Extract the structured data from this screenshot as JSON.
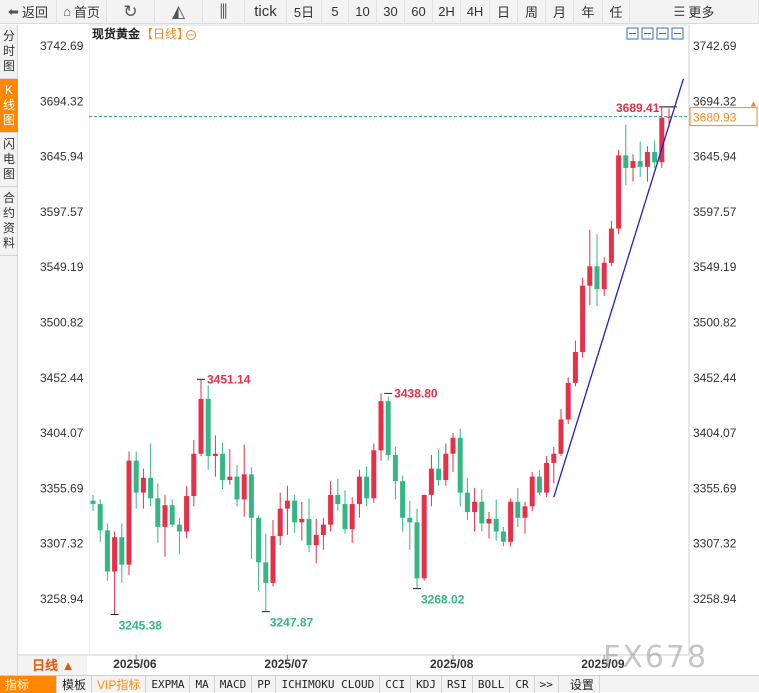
{
  "toolbar": {
    "items": [
      {
        "label": "返回",
        "icon": "back-arrow-icon"
      },
      {
        "label": "首页",
        "icon": "home-icon"
      },
      {
        "label": "",
        "icon": "refresh-icon"
      },
      {
        "label": "",
        "icon": "mountain-chart-icon"
      },
      {
        "label": "",
        "icon": "candlestick-icon"
      },
      {
        "label": "tick"
      },
      {
        "label": "5日"
      },
      {
        "label": "5"
      },
      {
        "label": "10"
      },
      {
        "label": "30"
      },
      {
        "label": "60"
      },
      {
        "label": "2H"
      },
      {
        "label": "4H"
      },
      {
        "label": "日"
      },
      {
        "label": "周"
      },
      {
        "label": "月"
      },
      {
        "label": "年"
      },
      {
        "label": "任"
      },
      {
        "label": "更多",
        "icon": "menu-icon"
      }
    ]
  },
  "sidebar": {
    "tabs": [
      {
        "label": "分时图",
        "active": false
      },
      {
        "label": "K线图",
        "active": true
      },
      {
        "label": "闪电图",
        "active": false
      },
      {
        "label": "合约资料",
        "active": false
      }
    ]
  },
  "header": {
    "title": "现货黄金",
    "period": "【日线】",
    "collapse_icon": "circle-minus-icon"
  },
  "chart_tools": [
    "zoom-in-icon",
    "zoom-out-icon",
    "draw-line-icon",
    "jump-end-icon"
  ],
  "period_button": "日线",
  "bottombar": {
    "items": [
      "指标",
      "模板",
      "VIP指标",
      "EXPMA",
      "MA",
      "MACD",
      "PP",
      "ICHIMOKU CLOUD",
      "CCI",
      "KDJ",
      "RSI",
      "BOLL",
      "CR",
      ">>",
      "设置"
    ]
  },
  "watermark": "FX678",
  "chart_data": {
    "type": "candlestick",
    "title": "现货黄金",
    "period": "日线",
    "y_ticks": [
      3258.94,
      3307.32,
      3355.69,
      3404.07,
      3452.44,
      3500.82,
      3549.19,
      3597.57,
      3645.94,
      3694.32,
      3742.69
    ],
    "x_labels": [
      {
        "label": "2025/06",
        "index": 6
      },
      {
        "label": "2025/07",
        "index": 27
      },
      {
        "label": "2025/08",
        "index": 50
      },
      {
        "label": "2025/09",
        "index": 71
      }
    ],
    "current_price": 3680.93,
    "annotations": [
      {
        "label": "3245.38",
        "value": 3245.38,
        "index": 3,
        "type": "low"
      },
      {
        "label": "3451.14",
        "value": 3451.14,
        "index": 15,
        "type": "high"
      },
      {
        "label": "3247.87",
        "value": 3247.87,
        "index": 24,
        "type": "low"
      },
      {
        "label": "3438.80",
        "value": 3438.8,
        "index": 41,
        "type": "high"
      },
      {
        "label": "3268.02",
        "value": 3268.02,
        "index": 45,
        "type": "low"
      },
      {
        "label": "3689.41",
        "value": 3689.41,
        "index": 80,
        "type": "high"
      }
    ],
    "trendline": [
      {
        "index": 64,
        "value": 3348
      },
      {
        "index": 82,
        "value": 3714
      }
    ],
    "candles": [
      {
        "o": 3345,
        "h": 3350,
        "l": 3336,
        "c": 3342
      },
      {
        "o": 3342,
        "h": 3346,
        "l": 3309,
        "c": 3319
      },
      {
        "o": 3319,
        "h": 3325,
        "l": 3275,
        "c": 3283
      },
      {
        "o": 3283,
        "h": 3318,
        "l": 3245.38,
        "c": 3313
      },
      {
        "o": 3313,
        "h": 3325,
        "l": 3273,
        "c": 3289
      },
      {
        "o": 3289,
        "h": 3388,
        "l": 3280,
        "c": 3380
      },
      {
        "o": 3380,
        "h": 3388,
        "l": 3338,
        "c": 3352
      },
      {
        "o": 3352,
        "h": 3373,
        "l": 3338,
        "c": 3365
      },
      {
        "o": 3365,
        "h": 3395,
        "l": 3340,
        "c": 3347
      },
      {
        "o": 3347,
        "h": 3360,
        "l": 3308,
        "c": 3322
      },
      {
        "o": 3322,
        "h": 3350,
        "l": 3296,
        "c": 3341
      },
      {
        "o": 3341,
        "h": 3346,
        "l": 3322,
        "c": 3324
      },
      {
        "o": 3324,
        "h": 3330,
        "l": 3298,
        "c": 3318
      },
      {
        "o": 3318,
        "h": 3358,
        "l": 3312,
        "c": 3349
      },
      {
        "o": 3349,
        "h": 3398,
        "l": 3340,
        "c": 3386
      },
      {
        "o": 3386,
        "h": 3451.14,
        "l": 3384,
        "c": 3434
      },
      {
        "o": 3434,
        "h": 3446,
        "l": 3372,
        "c": 3384
      },
      {
        "o": 3384,
        "h": 3402,
        "l": 3366,
        "c": 3386
      },
      {
        "o": 3386,
        "h": 3396,
        "l": 3355,
        "c": 3363
      },
      {
        "o": 3363,
        "h": 3390,
        "l": 3359,
        "c": 3366
      },
      {
        "o": 3366,
        "h": 3376,
        "l": 3340,
        "c": 3346
      },
      {
        "o": 3346,
        "h": 3394,
        "l": 3331,
        "c": 3368
      },
      {
        "o": 3368,
        "h": 3374,
        "l": 3294,
        "c": 3330
      },
      {
        "o": 3330,
        "h": 3332,
        "l": 3266,
        "c": 3291
      },
      {
        "o": 3291,
        "h": 3316,
        "l": 3247.87,
        "c": 3273
      },
      {
        "o": 3273,
        "h": 3328,
        "l": 3270,
        "c": 3314
      },
      {
        "o": 3314,
        "h": 3352,
        "l": 3306,
        "c": 3338
      },
      {
        "o": 3338,
        "h": 3358,
        "l": 3315,
        "c": 3345
      },
      {
        "o": 3345,
        "h": 3350,
        "l": 3317,
        "c": 3326
      },
      {
        "o": 3326,
        "h": 3344,
        "l": 3310,
        "c": 3329
      },
      {
        "o": 3329,
        "h": 3347,
        "l": 3300,
        "c": 3306
      },
      {
        "o": 3306,
        "h": 3329,
        "l": 3290,
        "c": 3315
      },
      {
        "o": 3315,
        "h": 3330,
        "l": 3302,
        "c": 3324
      },
      {
        "o": 3324,
        "h": 3362,
        "l": 3318,
        "c": 3350
      },
      {
        "o": 3350,
        "h": 3364,
        "l": 3336,
        "c": 3342
      },
      {
        "o": 3342,
        "h": 3354,
        "l": 3316,
        "c": 3320
      },
      {
        "o": 3320,
        "h": 3348,
        "l": 3308,
        "c": 3342
      },
      {
        "o": 3342,
        "h": 3372,
        "l": 3330,
        "c": 3366
      },
      {
        "o": 3366,
        "h": 3375,
        "l": 3340,
        "c": 3347
      },
      {
        "o": 3347,
        "h": 3395,
        "l": 3343,
        "c": 3389
      },
      {
        "o": 3389,
        "h": 3438.8,
        "l": 3380,
        "c": 3432
      },
      {
        "o": 3432,
        "h": 3436,
        "l": 3380,
        "c": 3385
      },
      {
        "o": 3385,
        "h": 3392,
        "l": 3346,
        "c": 3362
      },
      {
        "o": 3362,
        "h": 3367,
        "l": 3318,
        "c": 3330
      },
      {
        "o": 3330,
        "h": 3345,
        "l": 3302,
        "c": 3326
      },
      {
        "o": 3326,
        "h": 3338,
        "l": 3268.02,
        "c": 3277
      },
      {
        "o": 3277,
        "h": 3350,
        "l": 3275,
        "c": 3350
      },
      {
        "o": 3350,
        "h": 3385,
        "l": 3340,
        "c": 3373
      },
      {
        "o": 3373,
        "h": 3390,
        "l": 3358,
        "c": 3363
      },
      {
        "o": 3363,
        "h": 3395,
        "l": 3358,
        "c": 3386
      },
      {
        "o": 3386,
        "h": 3404,
        "l": 3370,
        "c": 3400
      },
      {
        "o": 3400,
        "h": 3408,
        "l": 3340,
        "c": 3352
      },
      {
        "o": 3352,
        "h": 3365,
        "l": 3328,
        "c": 3335
      },
      {
        "o": 3335,
        "h": 3356,
        "l": 3318,
        "c": 3344
      },
      {
        "o": 3344,
        "h": 3355,
        "l": 3318,
        "c": 3325
      },
      {
        "o": 3325,
        "h": 3335,
        "l": 3312,
        "c": 3329
      },
      {
        "o": 3329,
        "h": 3346,
        "l": 3310,
        "c": 3318
      },
      {
        "o": 3318,
        "h": 3322,
        "l": 3305,
        "c": 3309
      },
      {
        "o": 3309,
        "h": 3347,
        "l": 3305,
        "c": 3344
      },
      {
        "o": 3344,
        "h": 3356,
        "l": 3322,
        "c": 3330
      },
      {
        "o": 3330,
        "h": 3344,
        "l": 3316,
        "c": 3340
      },
      {
        "o": 3340,
        "h": 3370,
        "l": 3336,
        "c": 3366
      },
      {
        "o": 3366,
        "h": 3372,
        "l": 3350,
        "c": 3352
      },
      {
        "o": 3352,
        "h": 3384,
        "l": 3348,
        "c": 3378
      },
      {
        "o": 3378,
        "h": 3392,
        "l": 3360,
        "c": 3386
      },
      {
        "o": 3386,
        "h": 3425,
        "l": 3384,
        "c": 3416
      },
      {
        "o": 3416,
        "h": 3453,
        "l": 3412,
        "c": 3448
      },
      {
        "o": 3448,
        "h": 3485,
        "l": 3445,
        "c": 3475
      },
      {
        "o": 3475,
        "h": 3540,
        "l": 3470,
        "c": 3533
      },
      {
        "o": 3533,
        "h": 3582,
        "l": 3516,
        "c": 3550
      },
      {
        "o": 3550,
        "h": 3578,
        "l": 3515,
        "c": 3530
      },
      {
        "o": 3530,
        "h": 3558,
        "l": 3524,
        "c": 3553
      },
      {
        "o": 3553,
        "h": 3590,
        "l": 3550,
        "c": 3583
      },
      {
        "o": 3583,
        "h": 3652,
        "l": 3578,
        "c": 3647
      },
      {
        "o": 3647,
        "h": 3674,
        "l": 3621,
        "c": 3636
      },
      {
        "o": 3636,
        "h": 3648,
        "l": 3624,
        "c": 3642
      },
      {
        "o": 3642,
        "h": 3659,
        "l": 3628,
        "c": 3637
      },
      {
        "o": 3637,
        "h": 3655,
        "l": 3624,
        "c": 3650
      },
      {
        "o": 3650,
        "h": 3660,
        "l": 3636,
        "c": 3641
      },
      {
        "o": 3641,
        "h": 3689.41,
        "l": 3636,
        "c": 3680
      },
      {
        "o": 3680,
        "h": 3688,
        "l": 3672,
        "c": 3680.93
      }
    ]
  }
}
